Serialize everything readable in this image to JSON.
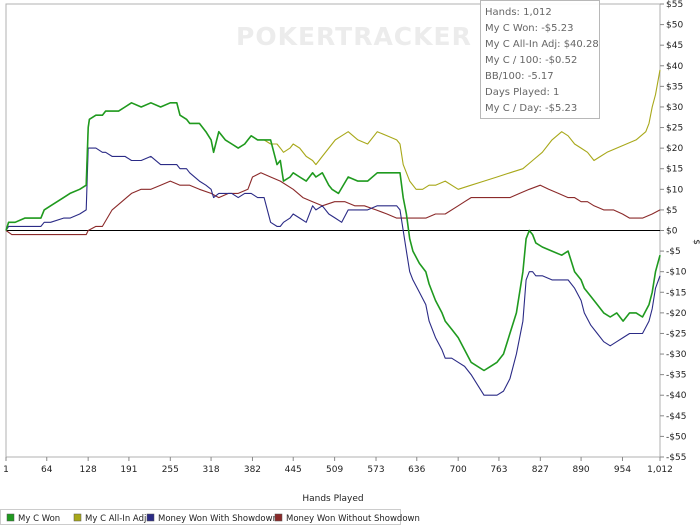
{
  "branding": {
    "watermark": "POKERTRACKER"
  },
  "stats": [
    "Hands: 1,012",
    "My C Won: -$5.23",
    "My C All-In Adj: $40.28",
    "My C / 100: -$0.52",
    "BB/100: -5.17",
    "Days Played: 1",
    "My C / Day: -$5.23"
  ],
  "chart_data": {
    "type": "line",
    "title": "",
    "xlabel": "Hands Played",
    "ylabel": "$",
    "xlim": [
      1,
      1012
    ],
    "ylim": [
      -55,
      55
    ],
    "x_ticks": [
      "1",
      "64",
      "128",
      "191",
      "255",
      "318",
      "382",
      "445",
      "509",
      "573",
      "636",
      "700",
      "763",
      "827",
      "890",
      "954",
      "1,012"
    ],
    "x_tick_values": [
      1,
      64,
      128,
      191,
      255,
      318,
      382,
      445,
      509,
      573,
      636,
      700,
      763,
      827,
      890,
      954,
      1012
    ],
    "y_ticks": [
      "$55",
      "$50",
      "$45",
      "$40",
      "$35",
      "$30",
      "$25",
      "$20",
      "$15",
      "$10",
      "$5",
      "$0",
      "-$5",
      "-$10",
      "-$15",
      "-$20",
      "-$25",
      "-$30",
      "-$35",
      "-$40",
      "-$45",
      "-$50",
      "-$55"
    ],
    "y_tick_values": [
      55,
      50,
      45,
      40,
      35,
      30,
      25,
      20,
      15,
      10,
      5,
      0,
      -5,
      -10,
      -15,
      -20,
      -25,
      -30,
      -35,
      -40,
      -45,
      -50,
      -55
    ],
    "grid": false,
    "legend_position": "bottom",
    "series": [
      {
        "name": "My C Won",
        "color": "#1f9a1f",
        "x": [
          1,
          5,
          15,
          30,
          40,
          55,
          60,
          70,
          90,
          100,
          115,
          125,
          128,
          130,
          140,
          150,
          155,
          165,
          175,
          185,
          195,
          210,
          225,
          240,
          255,
          265,
          270,
          280,
          285,
          300,
          310,
          318,
          322,
          330,
          340,
          350,
          360,
          370,
          375,
          380,
          390,
          400,
          410,
          420,
          425,
          430,
          440,
          445,
          455,
          465,
          475,
          480,
          490,
          500,
          505,
          515,
          530,
          545,
          560,
          575,
          590,
          605,
          610,
          615,
          620,
          625,
          630,
          640,
          650,
          655,
          665,
          675,
          680,
          690,
          700,
          710,
          720,
          740,
          750,
          760,
          770,
          780,
          790,
          800,
          805,
          810,
          815,
          820,
          830,
          845,
          860,
          870,
          880,
          890,
          895,
          905,
          915,
          925,
          935,
          945,
          955,
          965,
          975,
          985,
          995,
          1000,
          1005,
          1012
        ],
        "y": [
          0,
          2,
          2,
          3,
          3,
          3,
          5,
          6,
          8,
          9,
          10,
          11,
          25,
          27,
          28,
          28,
          29,
          29,
          29,
          30,
          31,
          30,
          31,
          30,
          31,
          31,
          28,
          27,
          26,
          26,
          24,
          22,
          19,
          24,
          22,
          21,
          20,
          21,
          22,
          23,
          22,
          22,
          22,
          16,
          17,
          12,
          13,
          14,
          13,
          12,
          14,
          13,
          14,
          11,
          10,
          9,
          13,
          12,
          12,
          14,
          14,
          14,
          14,
          8,
          4,
          -2,
          -5,
          -8,
          -10,
          -13,
          -17,
          -20,
          -22,
          -24,
          -26,
          -29,
          -32,
          -34,
          -33,
          -32,
          -30,
          -25,
          -20,
          -10,
          -2,
          0,
          -1,
          -3,
          -4,
          -5,
          -6,
          -5,
          -10,
          -12,
          -14,
          -16,
          -18,
          -20,
          -21,
          -20,
          -22,
          -20,
          -20,
          -21,
          -18,
          -15,
          -10,
          -6
        ]
      },
      {
        "name": "My C All-In Adj",
        "color": "#a8a81a",
        "x": [
          1,
          5,
          15,
          30,
          40,
          55,
          60,
          70,
          90,
          100,
          115,
          125,
          128,
          130,
          140,
          150,
          155,
          165,
          175,
          185,
          195,
          210,
          225,
          240,
          255,
          265,
          270,
          280,
          285,
          300,
          310,
          318,
          322,
          330,
          340,
          350,
          360,
          370,
          375,
          380,
          390,
          400,
          410,
          420,
          425,
          430,
          440,
          445,
          455,
          465,
          475,
          480,
          490,
          500,
          510,
          520,
          530,
          545,
          560,
          575,
          590,
          605,
          610,
          615,
          625,
          635,
          645,
          655,
          665,
          680,
          700,
          720,
          740,
          760,
          780,
          800,
          815,
          830,
          845,
          860,
          870,
          880,
          890,
          900,
          910,
          920,
          930,
          945,
          960,
          975,
          990,
          995,
          1000,
          1005,
          1012
        ],
        "y": [
          0,
          2,
          2,
          3,
          3,
          3,
          5,
          6,
          8,
          9,
          10,
          11,
          25,
          27,
          28,
          28,
          29,
          29,
          29,
          30,
          31,
          30,
          31,
          30,
          31,
          31,
          28,
          27,
          26,
          26,
          24,
          22,
          19,
          24,
          22,
          21,
          20,
          21,
          22,
          23,
          22,
          22,
          21,
          21,
          20,
          19,
          20,
          21,
          20,
          18,
          17,
          16,
          18,
          20,
          22,
          23,
          24,
          22,
          21,
          24,
          23,
          22,
          21,
          16,
          12,
          10,
          10,
          11,
          11,
          12,
          10,
          11,
          12,
          13,
          14,
          15,
          17,
          19,
          22,
          24,
          23,
          21,
          20,
          19,
          17,
          18,
          19,
          20,
          21,
          22,
          24,
          26,
          30,
          33,
          39
        ]
      },
      {
        "name": "Money Won With Showdown",
        "color": "#2b2b86",
        "x": [
          1,
          5,
          15,
          30,
          40,
          55,
          60,
          70,
          90,
          100,
          115,
          125,
          128,
          130,
          140,
          150,
          155,
          165,
          175,
          185,
          195,
          210,
          225,
          240,
          255,
          265,
          270,
          280,
          285,
          300,
          310,
          318,
          322,
          330,
          340,
          350,
          360,
          370,
          375,
          380,
          390,
          400,
          410,
          420,
          425,
          430,
          440,
          445,
          455,
          465,
          475,
          480,
          490,
          500,
          510,
          520,
          530,
          545,
          560,
          575,
          590,
          605,
          610,
          615,
          620,
          625,
          630,
          640,
          650,
          655,
          665,
          675,
          680,
          690,
          700,
          710,
          720,
          740,
          750,
          760,
          770,
          780,
          790,
          800,
          805,
          810,
          815,
          820,
          830,
          845,
          860,
          870,
          880,
          890,
          895,
          905,
          915,
          925,
          935,
          945,
          955,
          965,
          975,
          985,
          995,
          1000,
          1005,
          1012
        ],
        "y": [
          0,
          1,
          1,
          1,
          1,
          1,
          2,
          2,
          3,
          3,
          4,
          5,
          20,
          20,
          20,
          19,
          19,
          18,
          18,
          18,
          17,
          17,
          18,
          16,
          16,
          16,
          15,
          15,
          14,
          12,
          11,
          10,
          8,
          9,
          9,
          9,
          8,
          9,
          9,
          9,
          8,
          8,
          2,
          1,
          1,
          2,
          3,
          4,
          3,
          2,
          6,
          5,
          6,
          4,
          3,
          2,
          5,
          5,
          5,
          6,
          6,
          6,
          5,
          0,
          -5,
          -10,
          -12,
          -15,
          -18,
          -22,
          -26,
          -29,
          -31,
          -31,
          -32,
          -33,
          -35,
          -40,
          -40,
          -40,
          -39,
          -36,
          -30,
          -22,
          -12,
          -10,
          -10,
          -11,
          -11,
          -12,
          -12,
          -12,
          -14,
          -17,
          -20,
          -23,
          -25,
          -27,
          -28,
          -27,
          -26,
          -25,
          -25,
          -25,
          -22,
          -19,
          -14,
          -11
        ]
      },
      {
        "name": "Money Won Without Showdown",
        "color": "#8b2a2a",
        "x": [
          1,
          10,
          20,
          30,
          45,
          60,
          70,
          85,
          100,
          115,
          125,
          128,
          140,
          150,
          165,
          180,
          195,
          210,
          225,
          240,
          255,
          270,
          285,
          300,
          318,
          330,
          345,
          360,
          375,
          382,
          395,
          410,
          425,
          445,
          460,
          475,
          490,
          509,
          525,
          540,
          555,
          573,
          590,
          605,
          620,
          636,
          650,
          665,
          680,
          700,
          710,
          720,
          735,
          750,
          763,
          780,
          795,
          810,
          827,
          840,
          855,
          870,
          880,
          890,
          900,
          910,
          925,
          940,
          954,
          965,
          975,
          985,
          1000,
          1012
        ],
        "y": [
          0,
          -1,
          -1,
          -1,
          -1,
          -1,
          -1,
          -1,
          -1,
          -1,
          -1,
          0,
          1,
          1,
          5,
          7,
          9,
          10,
          10,
          11,
          12,
          11,
          11,
          10,
          9,
          8,
          9,
          9,
          10,
          13,
          14,
          13,
          12,
          10,
          8,
          7,
          6,
          7,
          7,
          6,
          6,
          5,
          4,
          3,
          3,
          3,
          3,
          4,
          4,
          6,
          7,
          8,
          8,
          8,
          8,
          8,
          9,
          10,
          11,
          10,
          9,
          8,
          8,
          7,
          7,
          6,
          5,
          5,
          4,
          3,
          3,
          3,
          4,
          5
        ]
      }
    ]
  }
}
